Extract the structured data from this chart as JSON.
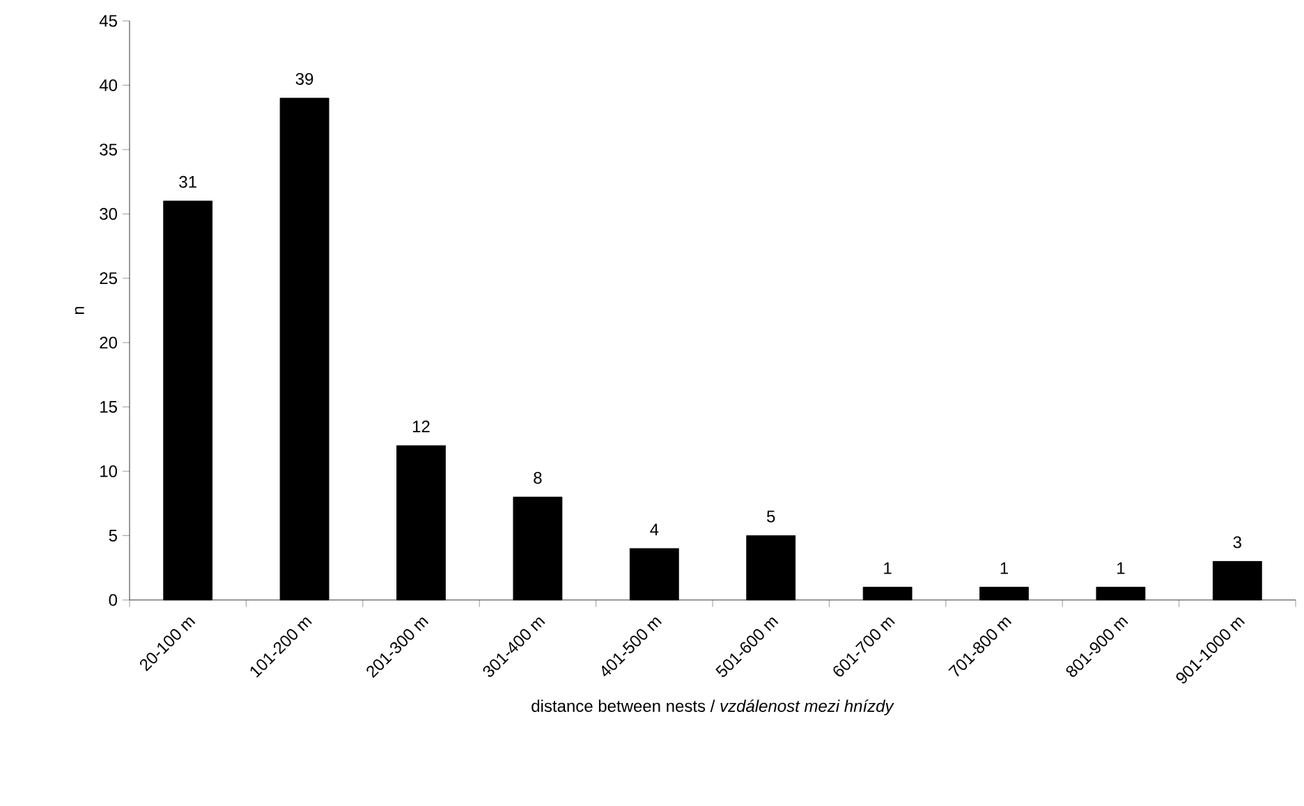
{
  "chart_data": {
    "type": "bar",
    "xlabel": "distance between nests / *vzdálenost mezi hnízdy*",
    "ylabel": "n",
    "categories": [
      "20-100 m",
      "101-200 m",
      "201-300 m",
      "301-400 m",
      "401-500 m",
      "501-600 m",
      "601-700 m",
      "701-800 m",
      "801-900 m",
      "901-1000 m"
    ],
    "values": [
      31,
      39,
      12,
      8,
      4,
      5,
      1,
      1,
      1,
      3
    ],
    "color": "#000000",
    "ylim": [
      0,
      45
    ],
    "yticks": [
      0,
      5,
      10,
      15,
      20,
      25,
      30,
      35,
      40,
      45
    ],
    "data_labels": true
  }
}
